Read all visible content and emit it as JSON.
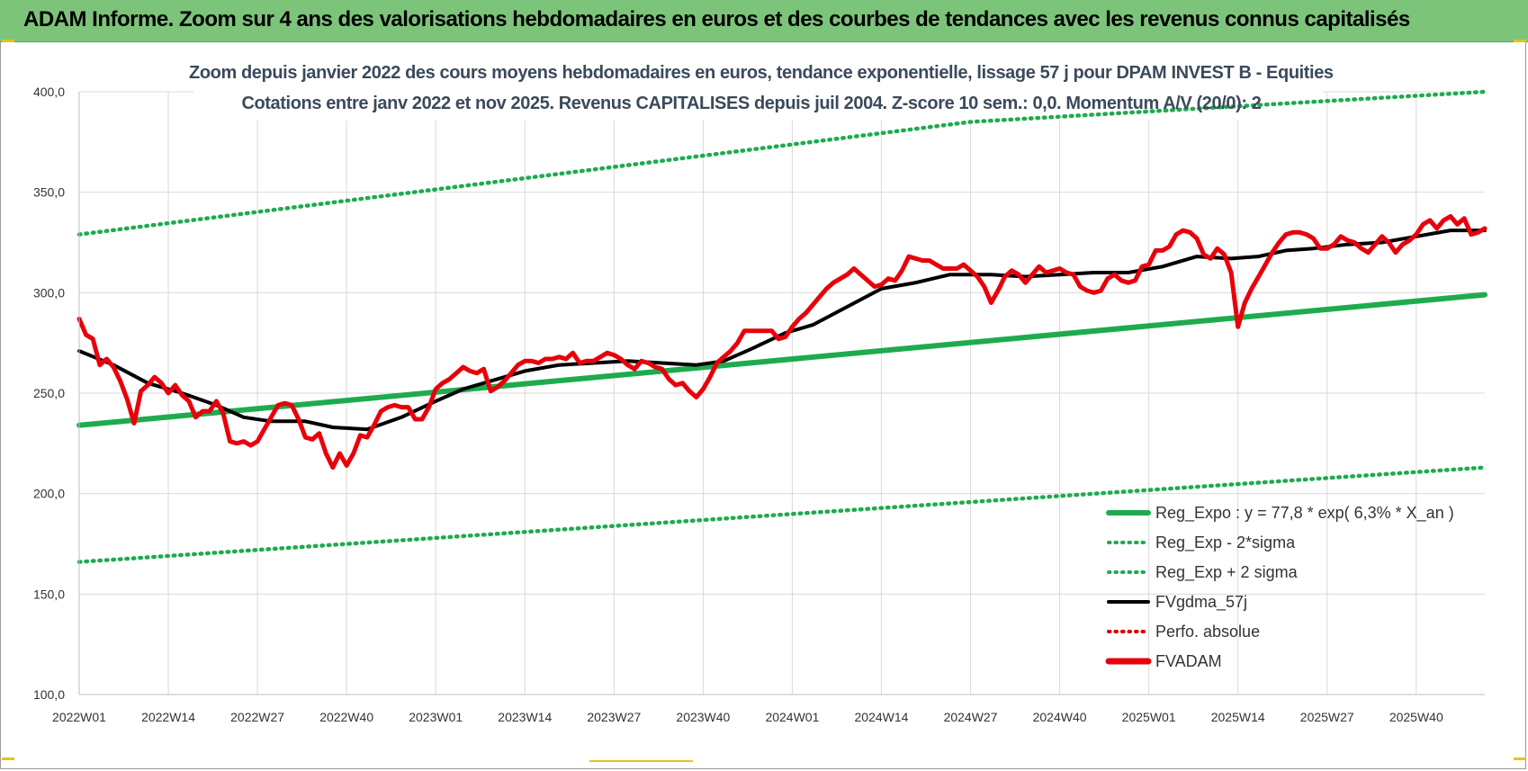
{
  "header": {
    "title": "ADAM Informe. Zoom sur 4 ans des valorisations hebdomadaires en euros et des courbes de tendances avec les revenus connus capitalisés"
  },
  "colors": {
    "banner": "#7cc47a",
    "trend": "#1eab4e",
    "gdma": "#000000",
    "fvadam": "#e8000b",
    "perfo": "#d40000"
  },
  "chart_data": {
    "type": "line",
    "title": "Zoom depuis janvier 2022 des cours moyens hebdomadaires en euros, tendance exponentielle, lissage 57 j pour DPAM INVEST B - Equities",
    "subtitle": "Cotations entre janv 2022 et nov 2025. Revenus CAPITALISES depuis juil 2004. Z-score 10 sem.: 0,0. Momentum A/V (20/0): 2",
    "xlabel": "",
    "ylabel": "",
    "ylim": [
      100,
      400
    ],
    "yticks": [
      "100,0",
      "150,0",
      "200,0",
      "250,0",
      "300,0",
      "350,0",
      "400,0"
    ],
    "x_tick_labels": [
      "2022W01",
      "2022W14",
      "2022W27",
      "2022W40",
      "2023W01",
      "2023W14",
      "2023W27",
      "2023W40",
      "2024W01",
      "2024W14",
      "2024W27",
      "2024W40",
      "2025W01",
      "2025W14",
      "2025W27",
      "2025W40"
    ],
    "x_tick_weeks": [
      0,
      13,
      26,
      39,
      52,
      65,
      78,
      91,
      104,
      117,
      130,
      143,
      156,
      169,
      182,
      195
    ],
    "x_range_weeks": [
      0,
      205
    ],
    "grid": true,
    "legend_position": "bottom-right",
    "series": [
      {
        "name": "Reg_Expo : y = 77,8 * exp( 6,3% *  X_an )",
        "style": "solid",
        "color": "#1eab4e",
        "points": [
          [
            0,
            234
          ],
          [
            205,
            299
          ]
        ]
      },
      {
        "name": "Reg_Exp - 2*sigma",
        "style": "dotted",
        "color": "#1eab4e",
        "points": [
          [
            0,
            166
          ],
          [
            205,
            213
          ]
        ]
      },
      {
        "name": "Reg_Exp + 2 sigma",
        "style": "dotted",
        "color": "#1eab4e",
        "points": [
          [
            0,
            329
          ],
          [
            130,
            385
          ],
          [
            205,
            400
          ]
        ]
      },
      {
        "name": "FVgdma_57j",
        "style": "solid",
        "color": "#000000",
        "points": [
          [
            0,
            271
          ],
          [
            5,
            264
          ],
          [
            10,
            255
          ],
          [
            15,
            250
          ],
          [
            20,
            244
          ],
          [
            24,
            238
          ],
          [
            28,
            236
          ],
          [
            33,
            236
          ],
          [
            37,
            233
          ],
          [
            42,
            232
          ],
          [
            47,
            238
          ],
          [
            52,
            246
          ],
          [
            56,
            252
          ],
          [
            60,
            256
          ],
          [
            65,
            261
          ],
          [
            70,
            264
          ],
          [
            75,
            265
          ],
          [
            80,
            266
          ],
          [
            85,
            265
          ],
          [
            90,
            264
          ],
          [
            94,
            266
          ],
          [
            98,
            272
          ],
          [
            103,
            280
          ],
          [
            107,
            284
          ],
          [
            112,
            293
          ],
          [
            117,
            302
          ],
          [
            122,
            305
          ],
          [
            127,
            309
          ],
          [
            133,
            309
          ],
          [
            138,
            308
          ],
          [
            143,
            309
          ],
          [
            148,
            310
          ],
          [
            153,
            310
          ],
          [
            158,
            313
          ],
          [
            163,
            318
          ],
          [
            168,
            317
          ],
          [
            172,
            318
          ],
          [
            176,
            321
          ],
          [
            180,
            322
          ],
          [
            185,
            324
          ],
          [
            190,
            325
          ],
          [
            195,
            328
          ],
          [
            200,
            331
          ],
          [
            205,
            331
          ]
        ]
      },
      {
        "name": "Perfo. absolue",
        "style": "dotted",
        "color": "#d40000",
        "points": []
      },
      {
        "name": "FVADAM",
        "style": "solid",
        "color": "#e8000b",
        "points": [
          [
            0,
            287
          ],
          [
            1,
            279
          ],
          [
            2,
            277
          ],
          [
            3,
            264
          ],
          [
            4,
            267
          ],
          [
            5,
            263
          ],
          [
            6,
            256
          ],
          [
            7,
            247
          ],
          [
            8,
            235
          ],
          [
            9,
            251
          ],
          [
            10,
            254
          ],
          [
            11,
            258
          ],
          [
            12,
            255
          ],
          [
            13,
            250
          ],
          [
            14,
            254
          ],
          [
            15,
            249
          ],
          [
            16,
            246
          ],
          [
            17,
            238
          ],
          [
            18,
            241
          ],
          [
            19,
            241
          ],
          [
            20,
            246
          ],
          [
            21,
            240
          ],
          [
            22,
            226
          ],
          [
            23,
            225
          ],
          [
            24,
            226
          ],
          [
            25,
            224
          ],
          [
            26,
            226
          ],
          [
            27,
            232
          ],
          [
            28,
            238
          ],
          [
            29,
            244
          ],
          [
            30,
            245
          ],
          [
            31,
            244
          ],
          [
            32,
            237
          ],
          [
            33,
            228
          ],
          [
            34,
            227
          ],
          [
            35,
            230
          ],
          [
            36,
            220
          ],
          [
            37,
            213
          ],
          [
            38,
            220
          ],
          [
            39,
            214
          ],
          [
            40,
            220
          ],
          [
            41,
            229
          ],
          [
            42,
            228
          ],
          [
            43,
            234
          ],
          [
            44,
            241
          ],
          [
            45,
            243
          ],
          [
            46,
            244
          ],
          [
            47,
            243
          ],
          [
            48,
            243
          ],
          [
            49,
            237
          ],
          [
            50,
            237
          ],
          [
            51,
            243
          ],
          [
            52,
            252
          ],
          [
            53,
            255
          ],
          [
            54,
            257
          ],
          [
            55,
            260
          ],
          [
            56,
            263
          ],
          [
            57,
            261
          ],
          [
            58,
            260
          ],
          [
            59,
            262
          ],
          [
            60,
            251
          ],
          [
            61,
            253
          ],
          [
            62,
            256
          ],
          [
            63,
            260
          ],
          [
            64,
            264
          ],
          [
            65,
            266
          ],
          [
            66,
            266
          ],
          [
            67,
            265
          ],
          [
            68,
            267
          ],
          [
            69,
            267
          ],
          [
            70,
            268
          ],
          [
            71,
            267
          ],
          [
            72,
            270
          ],
          [
            73,
            265
          ],
          [
            74,
            266
          ],
          [
            75,
            266
          ],
          [
            76,
            268
          ],
          [
            77,
            270
          ],
          [
            78,
            269
          ],
          [
            79,
            267
          ],
          [
            80,
            264
          ],
          [
            81,
            262
          ],
          [
            82,
            266
          ],
          [
            83,
            265
          ],
          [
            84,
            263
          ],
          [
            85,
            262
          ],
          [
            86,
            257
          ],
          [
            87,
            254
          ],
          [
            88,
            255
          ],
          [
            89,
            251
          ],
          [
            90,
            248
          ],
          [
            91,
            252
          ],
          [
            92,
            258
          ],
          [
            93,
            265
          ],
          [
            94,
            268
          ],
          [
            95,
            271
          ],
          [
            96,
            275
          ],
          [
            97,
            281
          ],
          [
            98,
            281
          ],
          [
            99,
            281
          ],
          [
            100,
            281
          ],
          [
            101,
            281
          ],
          [
            102,
            277
          ],
          [
            103,
            278
          ],
          [
            104,
            283
          ],
          [
            105,
            287
          ],
          [
            106,
            290
          ],
          [
            107,
            294
          ],
          [
            108,
            298
          ],
          [
            109,
            302
          ],
          [
            110,
            305
          ],
          [
            111,
            307
          ],
          [
            112,
            309
          ],
          [
            113,
            312
          ],
          [
            114,
            309
          ],
          [
            115,
            306
          ],
          [
            116,
            303
          ],
          [
            117,
            304
          ],
          [
            118,
            307
          ],
          [
            119,
            306
          ],
          [
            120,
            311
          ],
          [
            121,
            318
          ],
          [
            122,
            317
          ],
          [
            123,
            316
          ],
          [
            124,
            316
          ],
          [
            125,
            314
          ],
          [
            126,
            312
          ],
          [
            127,
            312
          ],
          [
            128,
            312
          ],
          [
            129,
            314
          ],
          [
            130,
            311
          ],
          [
            131,
            308
          ],
          [
            132,
            303
          ],
          [
            133,
            295
          ],
          [
            134,
            301
          ],
          [
            135,
            308
          ],
          [
            136,
            311
          ],
          [
            137,
            309
          ],
          [
            138,
            305
          ],
          [
            139,
            309
          ],
          [
            140,
            313
          ],
          [
            141,
            310
          ],
          [
            142,
            311
          ],
          [
            143,
            312
          ],
          [
            144,
            310
          ],
          [
            145,
            309
          ],
          [
            146,
            303
          ],
          [
            147,
            301
          ],
          [
            148,
            300
          ],
          [
            149,
            301
          ],
          [
            150,
            307
          ],
          [
            151,
            309
          ],
          [
            152,
            306
          ],
          [
            153,
            305
          ],
          [
            154,
            306
          ],
          [
            155,
            313
          ],
          [
            156,
            314
          ],
          [
            157,
            321
          ],
          [
            158,
            321
          ],
          [
            159,
            323
          ],
          [
            160,
            329
          ],
          [
            161,
            331
          ],
          [
            162,
            330
          ],
          [
            163,
            327
          ],
          [
            164,
            319
          ],
          [
            165,
            317
          ],
          [
            166,
            322
          ],
          [
            167,
            319
          ],
          [
            168,
            310
          ],
          [
            169,
            283
          ],
          [
            170,
            295
          ],
          [
            171,
            302
          ],
          [
            172,
            308
          ],
          [
            173,
            314
          ],
          [
            174,
            320
          ],
          [
            175,
            325
          ],
          [
            176,
            329
          ],
          [
            177,
            330
          ],
          [
            178,
            330
          ],
          [
            179,
            329
          ],
          [
            180,
            327
          ],
          [
            181,
            322
          ],
          [
            182,
            322
          ],
          [
            183,
            324
          ],
          [
            184,
            328
          ],
          [
            185,
            326
          ],
          [
            186,
            325
          ],
          [
            187,
            322
          ],
          [
            188,
            320
          ],
          [
            189,
            324
          ],
          [
            190,
            328
          ],
          [
            191,
            325
          ],
          [
            192,
            320
          ],
          [
            193,
            324
          ],
          [
            194,
            326
          ],
          [
            195,
            329
          ],
          [
            196,
            334
          ],
          [
            197,
            336
          ],
          [
            198,
            332
          ],
          [
            199,
            336
          ],
          [
            200,
            338
          ],
          [
            201,
            334
          ],
          [
            202,
            337
          ],
          [
            203,
            329
          ],
          [
            204,
            330
          ],
          [
            205,
            332
          ]
        ]
      }
    ]
  }
}
